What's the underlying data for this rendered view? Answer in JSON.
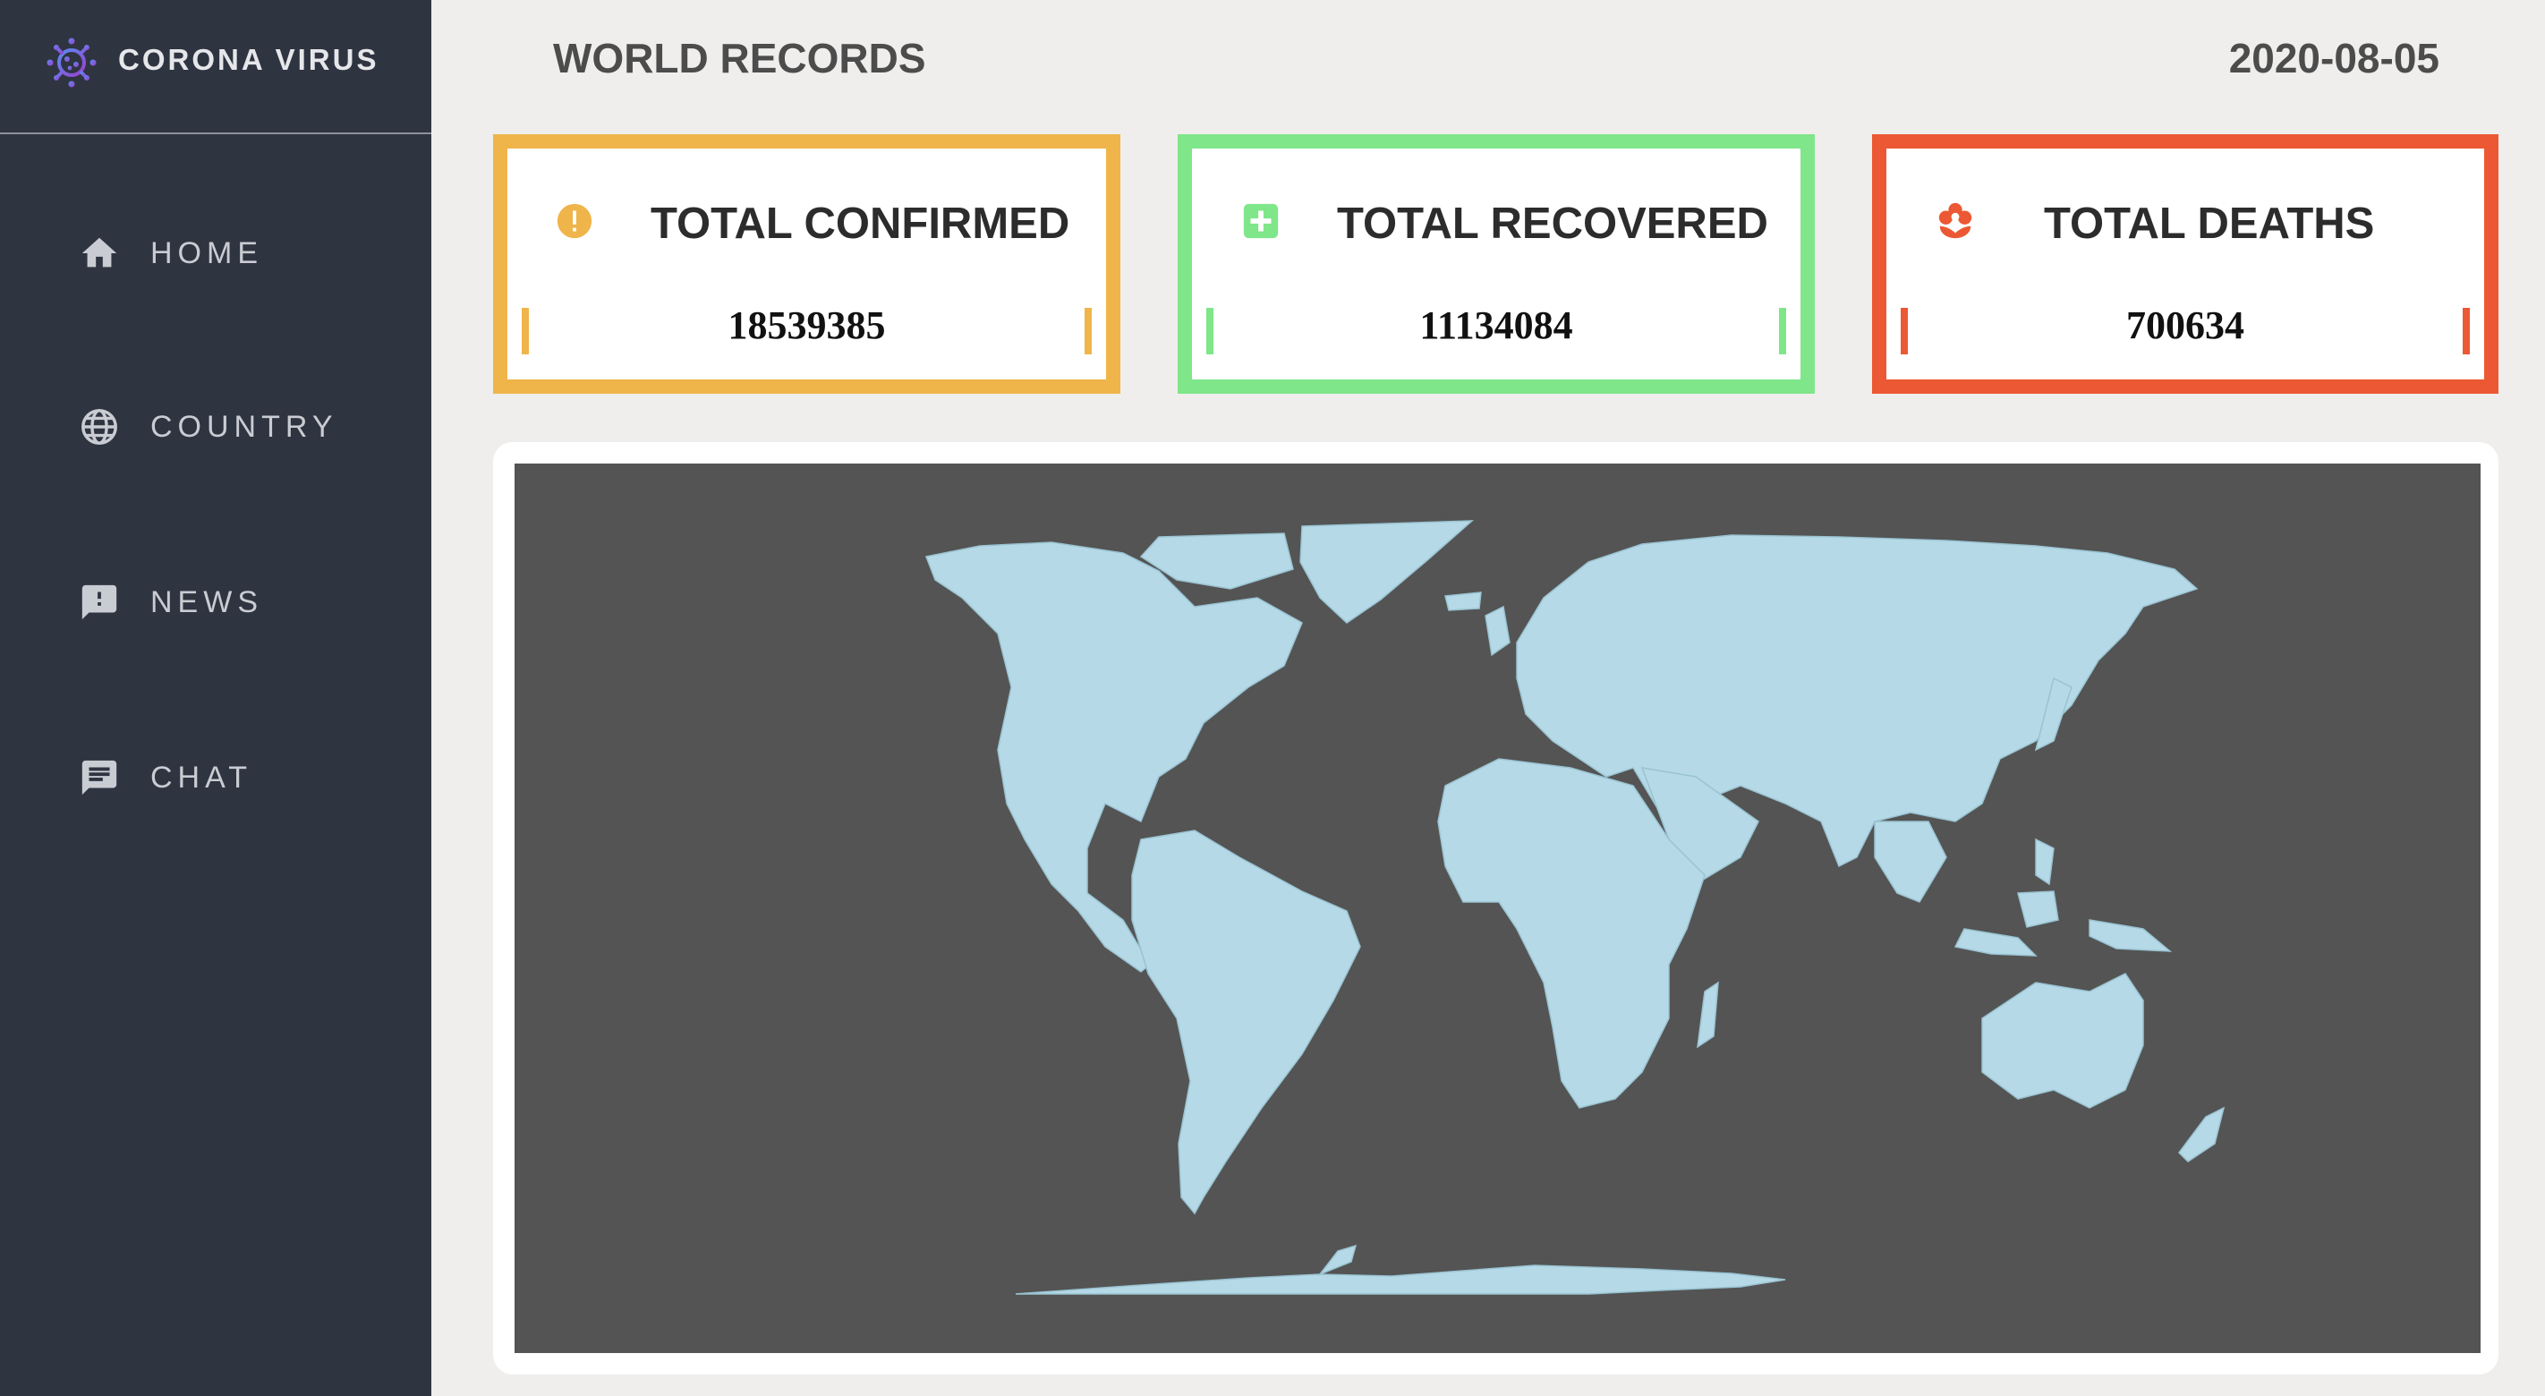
{
  "brand": {
    "name": "CORONA VIRUS",
    "icon": "virus-icon"
  },
  "sidebar": {
    "items": [
      {
        "label": "HOME",
        "icon": "home-icon"
      },
      {
        "label": "COUNTRY",
        "icon": "globe-icon"
      },
      {
        "label": "NEWS",
        "icon": "news-alert-icon"
      },
      {
        "label": "CHAT",
        "icon": "chat-icon"
      }
    ]
  },
  "header": {
    "title": "WORLD RECORDS",
    "date": "2020-08-05"
  },
  "stats": {
    "confirmed": {
      "title": "TOTAL CONFIRMED",
      "value": "18539385",
      "icon": "alert-circle-icon",
      "color": "#efb54b"
    },
    "recovered": {
      "title": "TOTAL RECOVERED",
      "value": "11134084",
      "icon": "medical-plus-icon",
      "color": "#7fe68a"
    },
    "deaths": {
      "title": "TOTAL DEATHS",
      "value": "700634",
      "icon": "flower-icon",
      "color": "#ec5833"
    }
  },
  "map": {
    "land_color": "#b5d9e6",
    "water_color": "#545454"
  },
  "colors": {
    "sidebar": "#2f3441",
    "background": "#efeeec"
  }
}
